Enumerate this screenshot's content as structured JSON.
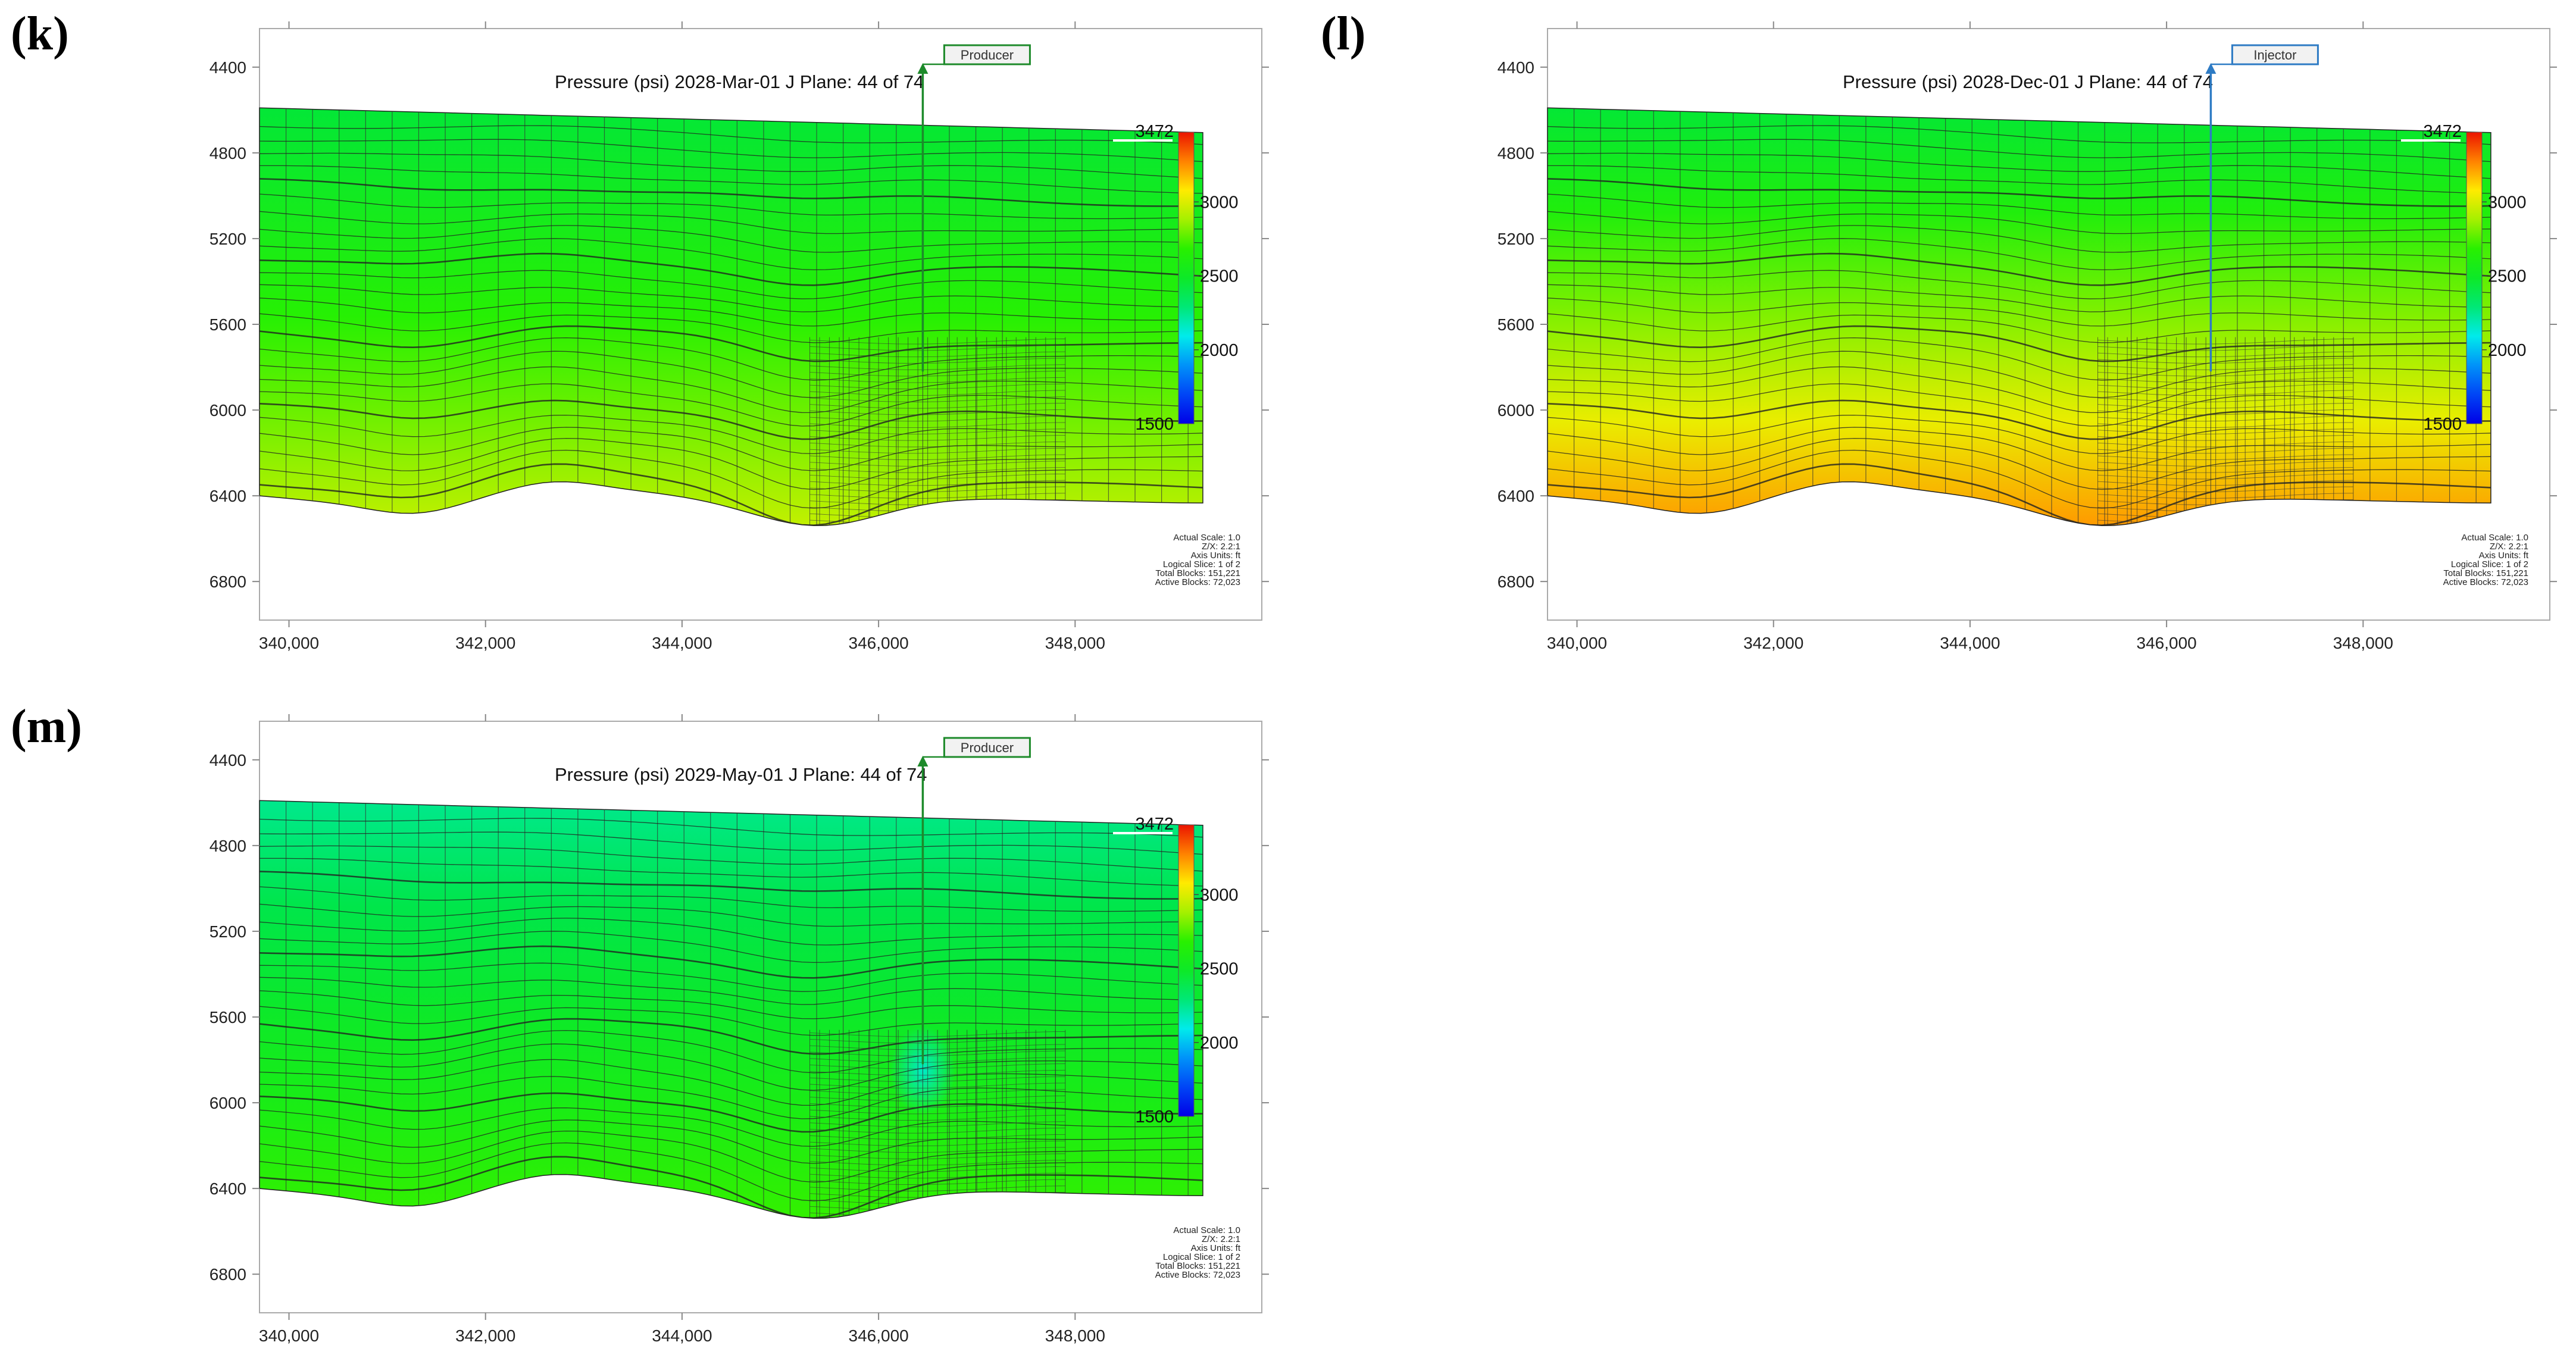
{
  "chart_data": [
    {
      "type": "heatmap",
      "panel_label": "(k)",
      "title": "Pressure (psi)  2028-Mar-01   J Plane: 44 of 74",
      "well": {
        "name": "Producer",
        "kind": "producer",
        "x": 346450,
        "color": "#1d8a2a"
      },
      "xlabel": "",
      "ylabel": "",
      "x_ticks": [
        "340,000",
        "342,000",
        "344,000",
        "346,000",
        "348,000"
      ],
      "x_tick_values": [
        340000,
        342000,
        344000,
        346000,
        348000
      ],
      "y_ticks": [
        "4400",
        "4800",
        "5200",
        "5600",
        "6000",
        "6400",
        "6800"
      ],
      "y_tick_values": [
        4400,
        4800,
        5200,
        5600,
        6000,
        6400,
        6800
      ],
      "xlim": [
        339700,
        349900
      ],
      "ylim": [
        4220,
        6980
      ],
      "colorbar": {
        "min": 1500,
        "max": 3472,
        "min_label": "1500",
        "max_label": "3472",
        "labels": [
          "3000",
          "2500",
          "2000"
        ],
        "label_values": [
          3000,
          2500,
          2000
        ]
      },
      "pressure_top": 2410,
      "pressure_bottom": 2930,
      "hotspot": null,
      "info": [
        "Actual Scale: 1.0",
        "Z/X: 2.2:1",
        "Axis Units: ft",
        "Logical Slice: 1 of 2",
        "Total Blocks: 151,221",
        "Active Blocks: 72,023"
      ]
    },
    {
      "type": "heatmap",
      "panel_label": "(l)",
      "title": "Pressure (psi)  2028-Dec-01   J Plane: 44 of 74",
      "well": {
        "name": "Injector",
        "kind": "injector",
        "x": 346450,
        "color": "#2e7bc4"
      },
      "xlabel": "",
      "ylabel": "",
      "x_ticks": [
        "340,000",
        "342,000",
        "344,000",
        "346,000",
        "348,000"
      ],
      "x_tick_values": [
        340000,
        342000,
        344000,
        346000,
        348000
      ],
      "y_ticks": [
        "4400",
        "4800",
        "5200",
        "5600",
        "6000",
        "6400",
        "6800"
      ],
      "y_tick_values": [
        4400,
        4800,
        5200,
        5600,
        6000,
        6400,
        6800
      ],
      "xlim": [
        339700,
        349900
      ],
      "ylim": [
        4220,
        6980
      ],
      "colorbar": {
        "min": 1500,
        "max": 3472,
        "min_label": "1500",
        "max_label": "3472",
        "labels": [
          "3000",
          "2500",
          "2000"
        ],
        "label_values": [
          3000,
          2500,
          2000
        ]
      },
      "pressure_top": 2420,
      "pressure_bottom": 3230,
      "hotspot": null,
      "info": [
        "Actual Scale: 1.0",
        "Z/X: 2.2:1",
        "Axis Units: ft",
        "Logical Slice: 1 of 2",
        "Total Blocks: 151,221",
        "Active Blocks: 72,023"
      ]
    },
    {
      "type": "heatmap",
      "panel_label": "(m)",
      "title": "Pressure (psi)  2029-May-01   J Plane: 44 of 74",
      "well": {
        "name": "Producer",
        "kind": "producer",
        "x": 346450,
        "color": "#1d8a2a"
      },
      "xlabel": "",
      "ylabel": "",
      "x_ticks": [
        "340,000",
        "342,000",
        "344,000",
        "346,000",
        "348,000"
      ],
      "x_tick_values": [
        340000,
        342000,
        344000,
        346000,
        348000
      ],
      "y_ticks": [
        "4400",
        "4800",
        "5200",
        "5600",
        "6000",
        "6400",
        "6800"
      ],
      "y_tick_values": [
        4400,
        4800,
        5200,
        5600,
        6000,
        6400,
        6800
      ],
      "xlim": [
        339700,
        349900
      ],
      "ylim": [
        4220,
        6980
      ],
      "colorbar": {
        "min": 1500,
        "max": 3472,
        "min_label": "1500",
        "max_label": "3472",
        "labels": [
          "3000",
          "2500",
          "2000"
        ],
        "label_values": [
          3000,
          2500,
          2000
        ]
      },
      "pressure_top": 2250,
      "pressure_bottom": 2700,
      "hotspot": {
        "x": 346450,
        "y": 5850,
        "pressure": 2150
      },
      "info": [
        "Actual Scale: 1.0",
        "Z/X: 2.2:1",
        "Axis Units: ft",
        "Logical Slice: 1 of 2",
        "Total Blocks: 151,221",
        "Active Blocks: 72,023"
      ]
    }
  ]
}
